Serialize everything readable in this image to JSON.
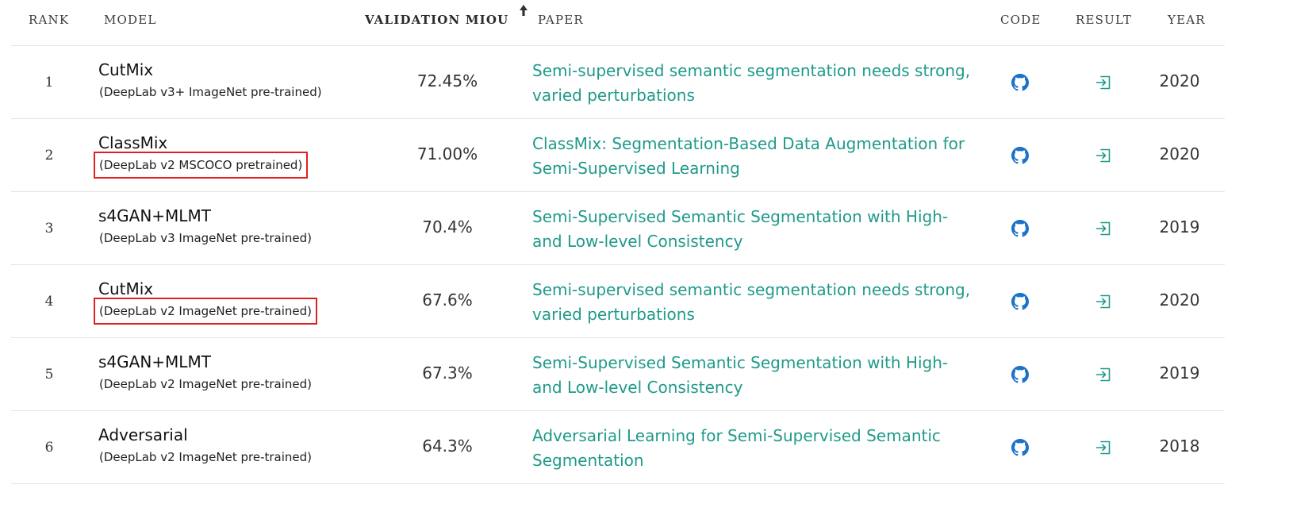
{
  "header": {
    "rank": "RANK",
    "model": "MODEL",
    "miou": "VALIDATION MIOU",
    "paper": "PAPER",
    "code": "CODE",
    "result": "RESULT",
    "year": "YEAR",
    "sort_icon": "arrow-up-icon"
  },
  "colors": {
    "link": "#1f9a8a",
    "github_icon": "#1a73c8",
    "result_icon": "#1f9a8a",
    "highlight_box": "#e02020"
  },
  "rows": [
    {
      "rank": "1",
      "model_name": "CutMix",
      "model_sub": "(DeepLab v3+ ImageNet pre-trained)",
      "highlighted": false,
      "miou": "72.45%",
      "paper": "Semi-supervised semantic segmentation needs strong, varied perturbations",
      "code_icon": "github-icon",
      "result_icon": "result-icon",
      "year": "2020"
    },
    {
      "rank": "2",
      "model_name": "ClassMix",
      "model_sub": "(DeepLab v2 MSCOCO pretrained)",
      "highlighted": true,
      "miou": "71.00%",
      "paper": "ClassMix: Segmentation-Based Data Augmentation for Semi-Supervised Learning",
      "code_icon": "github-icon",
      "result_icon": "result-icon",
      "year": "2020"
    },
    {
      "rank": "3",
      "model_name": "s4GAN+MLMT",
      "model_sub": "(DeepLab v3 ImageNet pre-trained)",
      "highlighted": false,
      "miou": "70.4%",
      "paper": "Semi-Supervised Semantic Segmentation with High- and Low-level Consistency",
      "code_icon": "github-icon",
      "result_icon": "result-icon",
      "year": "2019"
    },
    {
      "rank": "4",
      "model_name": "CutMix",
      "model_sub": "(DeepLab v2 ImageNet pre-trained)",
      "highlighted": true,
      "miou": "67.6%",
      "paper": "Semi-supervised semantic segmentation needs strong, varied perturbations",
      "code_icon": "github-icon",
      "result_icon": "result-icon",
      "year": "2020"
    },
    {
      "rank": "5",
      "model_name": "s4GAN+MLMT",
      "model_sub": "(DeepLab v2 ImageNet pre-trained)",
      "highlighted": false,
      "miou": "67.3%",
      "paper": "Semi-Supervised Semantic Segmentation with High- and Low-level Consistency",
      "code_icon": "github-icon",
      "result_icon": "result-icon",
      "year": "2019"
    },
    {
      "rank": "6",
      "model_name": "Adversarial",
      "model_sub": "(DeepLab v2 ImageNet pre-trained)",
      "highlighted": false,
      "miou": "64.3%",
      "paper": "Adversarial Learning for Semi-Supervised Semantic Segmentation",
      "code_icon": "github-icon",
      "result_icon": "result-icon",
      "year": "2018"
    }
  ]
}
